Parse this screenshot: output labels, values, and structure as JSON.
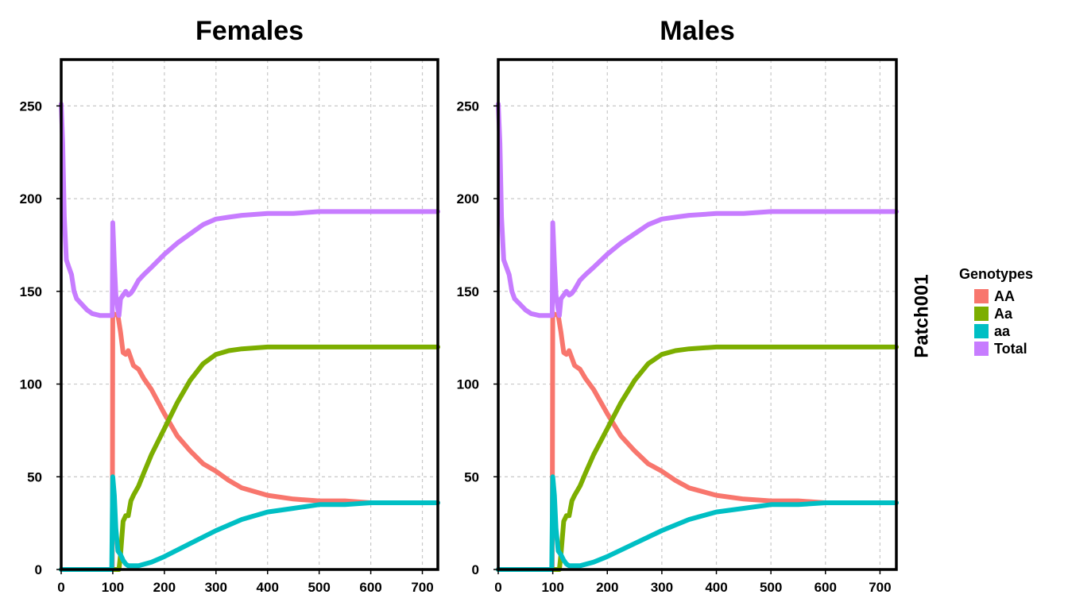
{
  "chart_data": {
    "type": "line",
    "xlim": [
      0,
      730
    ],
    "ylim": [
      0,
      275
    ],
    "x_ticks": [
      0,
      100,
      200,
      300,
      400,
      500,
      600,
      700
    ],
    "y_ticks": [
      0,
      50,
      100,
      150,
      200,
      250
    ],
    "grid": true,
    "strip_label": "Patch001",
    "legend": {
      "title": "Genotypes",
      "placement": "right",
      "entries": [
        {
          "label": "AA",
          "color": "#F8766D"
        },
        {
          "label": "Aa",
          "color": "#7CAE00"
        },
        {
          "label": "aa",
          "color": "#00BFC4"
        },
        {
          "label": "Total",
          "color": "#C77CFF"
        }
      ]
    },
    "panels": [
      {
        "title": "Females",
        "series": [
          {
            "name": "AA",
            "color": "#F8766D",
            "points": [
              [
                0,
                0
              ],
              [
                99,
                0
              ],
              [
                100,
                138
              ],
              [
                110,
                137
              ],
              [
                115,
                128
              ],
              [
                120,
                117
              ],
              [
                125,
                116
              ],
              [
                130,
                118
              ],
              [
                135,
                114
              ],
              [
                140,
                110
              ],
              [
                150,
                108
              ],
              [
                160,
                103
              ],
              [
                175,
                97
              ],
              [
                200,
                84
              ],
              [
                225,
                72
              ],
              [
                250,
                64
              ],
              [
                275,
                57
              ],
              [
                300,
                53
              ],
              [
                325,
                48
              ],
              [
                350,
                44
              ],
              [
                400,
                40
              ],
              [
                450,
                38
              ],
              [
                500,
                37
              ],
              [
                550,
                37
              ],
              [
                600,
                36
              ],
              [
                650,
                36
              ],
              [
                730,
                36
              ]
            ]
          },
          {
            "name": "Aa",
            "color": "#7CAE00",
            "points": [
              [
                0,
                0
              ],
              [
                112,
                0
              ],
              [
                115,
                8
              ],
              [
                120,
                26
              ],
              [
                125,
                29
              ],
              [
                130,
                29
              ],
              [
                135,
                37
              ],
              [
                140,
                40
              ],
              [
                150,
                45
              ],
              [
                160,
                52
              ],
              [
                175,
                62
              ],
              [
                200,
                76
              ],
              [
                225,
                90
              ],
              [
                250,
                102
              ],
              [
                275,
                111
              ],
              [
                300,
                116
              ],
              [
                325,
                118
              ],
              [
                350,
                119
              ],
              [
                400,
                120
              ],
              [
                450,
                120
              ],
              [
                500,
                120
              ],
              [
                730,
                120
              ]
            ]
          },
          {
            "name": "aa",
            "color": "#00BFC4",
            "points": [
              [
                0,
                0
              ],
              [
                98,
                0
              ],
              [
                100,
                50
              ],
              [
                103,
                40
              ],
              [
                106,
                22
              ],
              [
                110,
                10
              ],
              [
                115,
                8
              ],
              [
                120,
                5
              ],
              [
                125,
                3
              ],
              [
                130,
                2
              ],
              [
                150,
                2
              ],
              [
                175,
                4
              ],
              [
                200,
                7
              ],
              [
                250,
                14
              ],
              [
                300,
                21
              ],
              [
                350,
                27
              ],
              [
                400,
                31
              ],
              [
                450,
                33
              ],
              [
                500,
                35
              ],
              [
                550,
                35
              ],
              [
                600,
                36
              ],
              [
                730,
                36
              ]
            ]
          },
          {
            "name": "Total",
            "color": "#C77CFF",
            "points": [
              [
                0,
                251
              ],
              [
                3,
                230
              ],
              [
                6,
                190
              ],
              [
                10,
                167
              ],
              [
                15,
                163
              ],
              [
                20,
                159
              ],
              [
                25,
                150
              ],
              [
                30,
                146
              ],
              [
                40,
                143
              ],
              [
                50,
                140
              ],
              [
                60,
                138
              ],
              [
                75,
                137
              ],
              [
                99,
                137
              ],
              [
                100,
                187
              ],
              [
                103,
                165
              ],
              [
                106,
                148
              ],
              [
                110,
                140
              ],
              [
                112,
                137
              ],
              [
                115,
                146
              ],
              [
                120,
                148
              ],
              [
                125,
                150
              ],
              [
                130,
                148
              ],
              [
                135,
                149
              ],
              [
                140,
                151
              ],
              [
                150,
                156
              ],
              [
                160,
                159
              ],
              [
                175,
                163
              ],
              [
                200,
                170
              ],
              [
                225,
                176
              ],
              [
                250,
                181
              ],
              [
                275,
                186
              ],
              [
                300,
                189
              ],
              [
                325,
                190
              ],
              [
                350,
                191
              ],
              [
                400,
                192
              ],
              [
                450,
                192
              ],
              [
                500,
                193
              ],
              [
                730,
                193
              ]
            ]
          }
        ]
      },
      {
        "title": "Males",
        "series": [
          {
            "name": "AA",
            "color": "#F8766D",
            "points": [
              [
                0,
                0
              ],
              [
                99,
                0
              ],
              [
                100,
                138
              ],
              [
                110,
                137
              ],
              [
                115,
                128
              ],
              [
                120,
                117
              ],
              [
                125,
                116
              ],
              [
                130,
                118
              ],
              [
                135,
                114
              ],
              [
                140,
                110
              ],
              [
                150,
                108
              ],
              [
                160,
                103
              ],
              [
                175,
                97
              ],
              [
                200,
                84
              ],
              [
                225,
                72
              ],
              [
                250,
                64
              ],
              [
                275,
                57
              ],
              [
                300,
                53
              ],
              [
                325,
                48
              ],
              [
                350,
                44
              ],
              [
                400,
                40
              ],
              [
                450,
                38
              ],
              [
                500,
                37
              ],
              [
                550,
                37
              ],
              [
                600,
                36
              ],
              [
                650,
                36
              ],
              [
                730,
                36
              ]
            ]
          },
          {
            "name": "Aa",
            "color": "#7CAE00",
            "points": [
              [
                0,
                0
              ],
              [
                112,
                0
              ],
              [
                115,
                8
              ],
              [
                120,
                26
              ],
              [
                125,
                29
              ],
              [
                130,
                29
              ],
              [
                135,
                37
              ],
              [
                140,
                40
              ],
              [
                150,
                45
              ],
              [
                160,
                52
              ],
              [
                175,
                62
              ],
              [
                200,
                76
              ],
              [
                225,
                90
              ],
              [
                250,
                102
              ],
              [
                275,
                111
              ],
              [
                300,
                116
              ],
              [
                325,
                118
              ],
              [
                350,
                119
              ],
              [
                400,
                120
              ],
              [
                450,
                120
              ],
              [
                500,
                120
              ],
              [
                730,
                120
              ]
            ]
          },
          {
            "name": "aa",
            "color": "#00BFC4",
            "points": [
              [
                0,
                0
              ],
              [
                98,
                0
              ],
              [
                100,
                50
              ],
              [
                103,
                40
              ],
              [
                106,
                22
              ],
              [
                110,
                10
              ],
              [
                115,
                8
              ],
              [
                120,
                5
              ],
              [
                125,
                3
              ],
              [
                130,
                2
              ],
              [
                150,
                2
              ],
              [
                175,
                4
              ],
              [
                200,
                7
              ],
              [
                250,
                14
              ],
              [
                300,
                21
              ],
              [
                350,
                27
              ],
              [
                400,
                31
              ],
              [
                450,
                33
              ],
              [
                500,
                35
              ],
              [
                550,
                35
              ],
              [
                600,
                36
              ],
              [
                730,
                36
              ]
            ]
          },
          {
            "name": "Total",
            "color": "#C77CFF",
            "points": [
              [
                0,
                251
              ],
              [
                3,
                230
              ],
              [
                6,
                190
              ],
              [
                10,
                167
              ],
              [
                15,
                163
              ],
              [
                20,
                159
              ],
              [
                25,
                150
              ],
              [
                30,
                146
              ],
              [
                40,
                143
              ],
              [
                50,
                140
              ],
              [
                60,
                138
              ],
              [
                75,
                137
              ],
              [
                99,
                137
              ],
              [
                100,
                187
              ],
              [
                103,
                165
              ],
              [
                106,
                148
              ],
              [
                110,
                140
              ],
              [
                112,
                137
              ],
              [
                115,
                146
              ],
              [
                120,
                148
              ],
              [
                125,
                150
              ],
              [
                130,
                148
              ],
              [
                135,
                149
              ],
              [
                140,
                151
              ],
              [
                150,
                156
              ],
              [
                160,
                159
              ],
              [
                175,
                163
              ],
              [
                200,
                170
              ],
              [
                225,
                176
              ],
              [
                250,
                181
              ],
              [
                275,
                186
              ],
              [
                300,
                189
              ],
              [
                325,
                190
              ],
              [
                350,
                191
              ],
              [
                400,
                192
              ],
              [
                450,
                192
              ],
              [
                500,
                193
              ],
              [
                730,
                193
              ]
            ]
          }
        ]
      }
    ]
  }
}
